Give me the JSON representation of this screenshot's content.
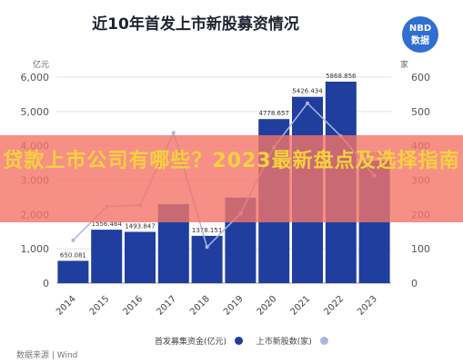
{
  "header": {
    "title": "近10年首发上市新股募资情况",
    "logo_line1": "NBD",
    "logo_line2": "数据"
  },
  "chart_data": {
    "type": "bar+line",
    "title": "近10年首发上市新股募资情况",
    "categories": [
      "2014",
      "2015",
      "2016",
      "2017",
      "2018",
      "2019",
      "2020",
      "2021",
      "2022",
      "2023"
    ],
    "left_unit": "亿元",
    "right_unit": "家",
    "left_ticks": [
      "0",
      "1,000",
      "2,000",
      "3,000",
      "4,000",
      "5,000",
      "6,000"
    ],
    "right_ticks": [
      "0",
      "100",
      "200",
      "300",
      "400",
      "500",
      "600"
    ],
    "ylim_left": [
      0,
      6000
    ],
    "ylim_right": [
      0,
      600
    ],
    "series": [
      {
        "name": "首发募集资金(亿元)",
        "type": "bar",
        "color": "#1f3e9e",
        "values": [
          650.081,
          1556.464,
          1493.847,
          2301,
          1378.151,
          2490,
          4778.657,
          5426.434,
          5868.856,
          3565
        ]
      },
      {
        "name": "上市新股数(家)",
        "type": "line",
        "color": "#aab6e0",
        "values": [
          125,
          223,
          227,
          438,
          105,
          203,
          396,
          524,
          428,
          313
        ]
      }
    ],
    "data_labels": [
      "650.081",
      "1556.464",
      "1493.847",
      "",
      "1378.151",
      "",
      "4778.657",
      "5426.434",
      "5868.856",
      "3565.3"
    ]
  },
  "legend": {
    "bar_label": "首发募集资金(亿元)",
    "line_label": "上市新股数(家)"
  },
  "watermark": {
    "text": "贷款上市公司有哪些？2023最新盘点及选择指南"
  },
  "footer": {
    "source": "数据来源 | Wind"
  }
}
